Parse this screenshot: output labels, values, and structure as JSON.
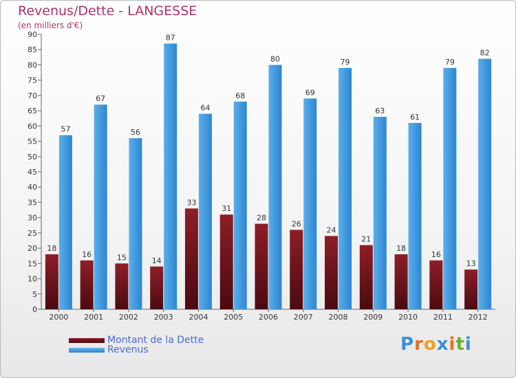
{
  "title": "Revenus/Dette - LANGESSE",
  "subtitle": "(en milliers d'€)",
  "legend": {
    "dette_label": "Montant de la Dette",
    "revenus_label": "Revenus"
  },
  "logo_text": "Proxiti",
  "colors": {
    "dette": "#6e1018",
    "revenus": "#3d9be0",
    "title": "#b0306a",
    "legend_text": "#4a6ad8"
  },
  "chart_data": {
    "type": "bar",
    "title": "Revenus/Dette - LANGESSE",
    "subtitle": "(en milliers d'€)",
    "xlabel": "",
    "ylabel": "",
    "ylim": [
      0,
      90
    ],
    "yticks": [
      0,
      5,
      10,
      15,
      20,
      25,
      30,
      35,
      40,
      45,
      50,
      55,
      60,
      65,
      70,
      75,
      80,
      85,
      90
    ],
    "grid": false,
    "legend_position": "bottom-left",
    "categories": [
      "2000",
      "2001",
      "2002",
      "2003",
      "2004",
      "2005",
      "2006",
      "2007",
      "2008",
      "2009",
      "2010",
      "2011",
      "2012"
    ],
    "series": [
      {
        "name": "Montant de la Dette",
        "values": [
          18,
          16,
          15,
          14,
          33,
          31,
          28,
          26,
          24,
          21,
          18,
          16,
          13
        ]
      },
      {
        "name": "Revenus",
        "values": [
          57,
          67,
          56,
          87,
          64,
          68,
          80,
          69,
          79,
          63,
          61,
          79,
          82
        ]
      }
    ]
  }
}
